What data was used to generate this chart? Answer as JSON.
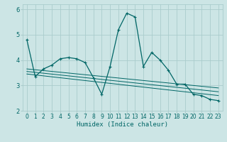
{
  "title": "",
  "xlabel": "Humidex (Indice chaleur)",
  "background_color": "#cce5e5",
  "grid_color": "#aacccc",
  "line_color": "#006666",
  "xlim": [
    -0.5,
    23.5
  ],
  "ylim": [
    2.0,
    6.2
  ],
  "yticks": [
    2,
    3,
    4,
    5,
    6
  ],
  "xticks": [
    0,
    1,
    2,
    3,
    4,
    5,
    6,
    7,
    8,
    9,
    10,
    11,
    12,
    13,
    14,
    15,
    16,
    17,
    18,
    19,
    20,
    21,
    22,
    23
  ],
  "lines": [
    {
      "x": [
        0,
        1,
        2,
        3,
        4,
        5,
        6,
        7,
        8,
        9,
        10,
        11,
        12,
        13,
        14,
        15,
        16,
        17,
        18,
        19,
        20,
        21,
        22,
        23
      ],
      "y": [
        4.8,
        3.35,
        3.65,
        3.8,
        4.05,
        4.1,
        4.05,
        3.9,
        3.3,
        2.65,
        3.75,
        5.2,
        5.85,
        5.7,
        3.75,
        4.3,
        4.0,
        3.6,
        3.05,
        3.05,
        2.65,
        2.6,
        2.45,
        2.4
      ],
      "marker": "+"
    },
    {
      "x": [
        0,
        23
      ],
      "y": [
        3.65,
        2.9
      ]
    },
    {
      "x": [
        0,
        23
      ],
      "y": [
        3.55,
        2.75
      ]
    },
    {
      "x": [
        0,
        23
      ],
      "y": [
        3.45,
        2.6
      ]
    }
  ]
}
